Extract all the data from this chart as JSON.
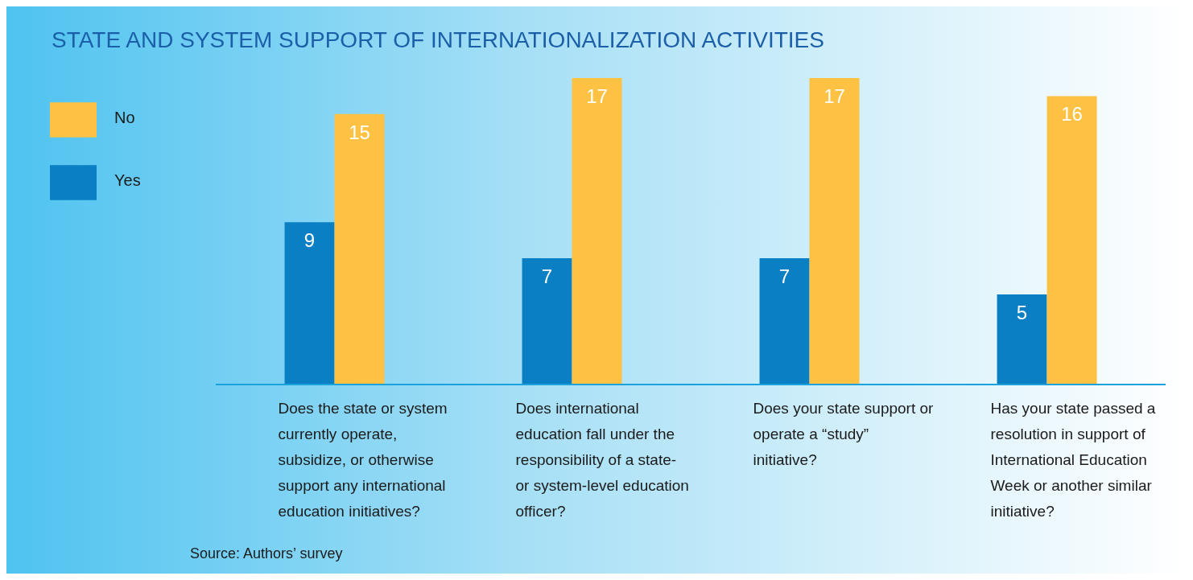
{
  "chart_data": {
    "type": "bar",
    "title": "STATE AND SYSTEM SUPPORT OF INTERNATIONALIZATION ACTIVITIES",
    "categories": [
      "Does the state or system currently operate, subsidize, or otherwise support any international education initiatives?",
      "Does international education fall under the responsibility of a state- or system-level education officer?",
      "Does your state support or operate a “study” initiative?",
      "Has your state passed a resolution in support of International Education Week or another similar initiative?"
    ],
    "series": [
      {
        "name": "Yes",
        "color": "#0a7fc4",
        "values": [
          9,
          7,
          7,
          5
        ]
      },
      {
        "name": "No",
        "color": "#fdc244",
        "values": [
          15,
          17,
          17,
          16
        ]
      }
    ],
    "data_labels": true,
    "legend": "top left",
    "grid": false,
    "annotations": [
      "Source: Authors’ survey"
    ]
  }
}
